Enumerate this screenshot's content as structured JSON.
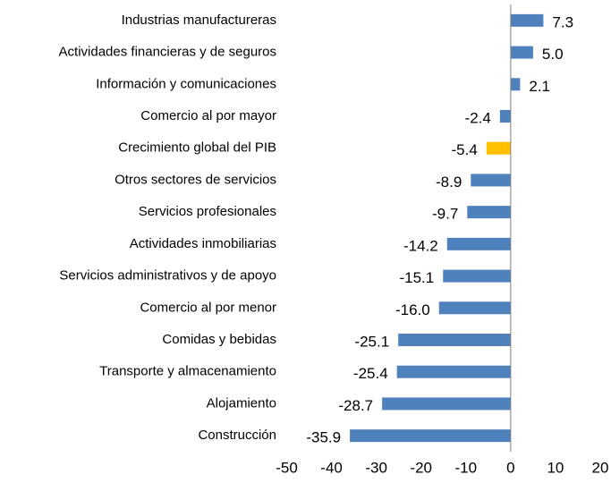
{
  "chart_data": {
    "type": "bar",
    "orientation": "horizontal",
    "categories": [
      "Industrias manufactureras",
      "Actividades financieras y de seguros",
      "Información y comunicaciones",
      "Comercio al por mayor",
      "Crecimiento global del PIB",
      "Otros sectores de servicios",
      "Servicios profesionales",
      "Actividades inmobiliarias",
      "Servicios administrativos y de apoyo",
      "Comercio al por menor",
      "Comidas y bebidas",
      "Transporte y almacenamiento",
      "Alojamiento",
      "Construcción"
    ],
    "values": [
      7.3,
      5.0,
      2.1,
      -2.4,
      -5.4,
      -8.9,
      -9.7,
      -14.2,
      -15.1,
      -16.0,
      -25.1,
      -25.4,
      -28.7,
      -35.9
    ],
    "value_labels": [
      "7.3",
      "5.0",
      "2.1",
      "-2.4",
      "-5.4",
      "-8.9",
      "-9.7",
      "-14.2",
      "-15.1",
      "-16.0",
      "-25.1",
      "-25.4",
      "-28.7",
      "-35.9"
    ],
    "colors": [
      "#4f81bd",
      "#4f81bd",
      "#4f81bd",
      "#4f81bd",
      "#ffc000",
      "#4f81bd",
      "#4f81bd",
      "#4f81bd",
      "#4f81bd",
      "#4f81bd",
      "#4f81bd",
      "#4f81bd",
      "#4f81bd",
      "#4f81bd"
    ],
    "xlim": [
      -50,
      20
    ],
    "xticks": [
      -50,
      -40,
      -30,
      -20,
      -10,
      0,
      10,
      20
    ],
    "grid": false
  }
}
